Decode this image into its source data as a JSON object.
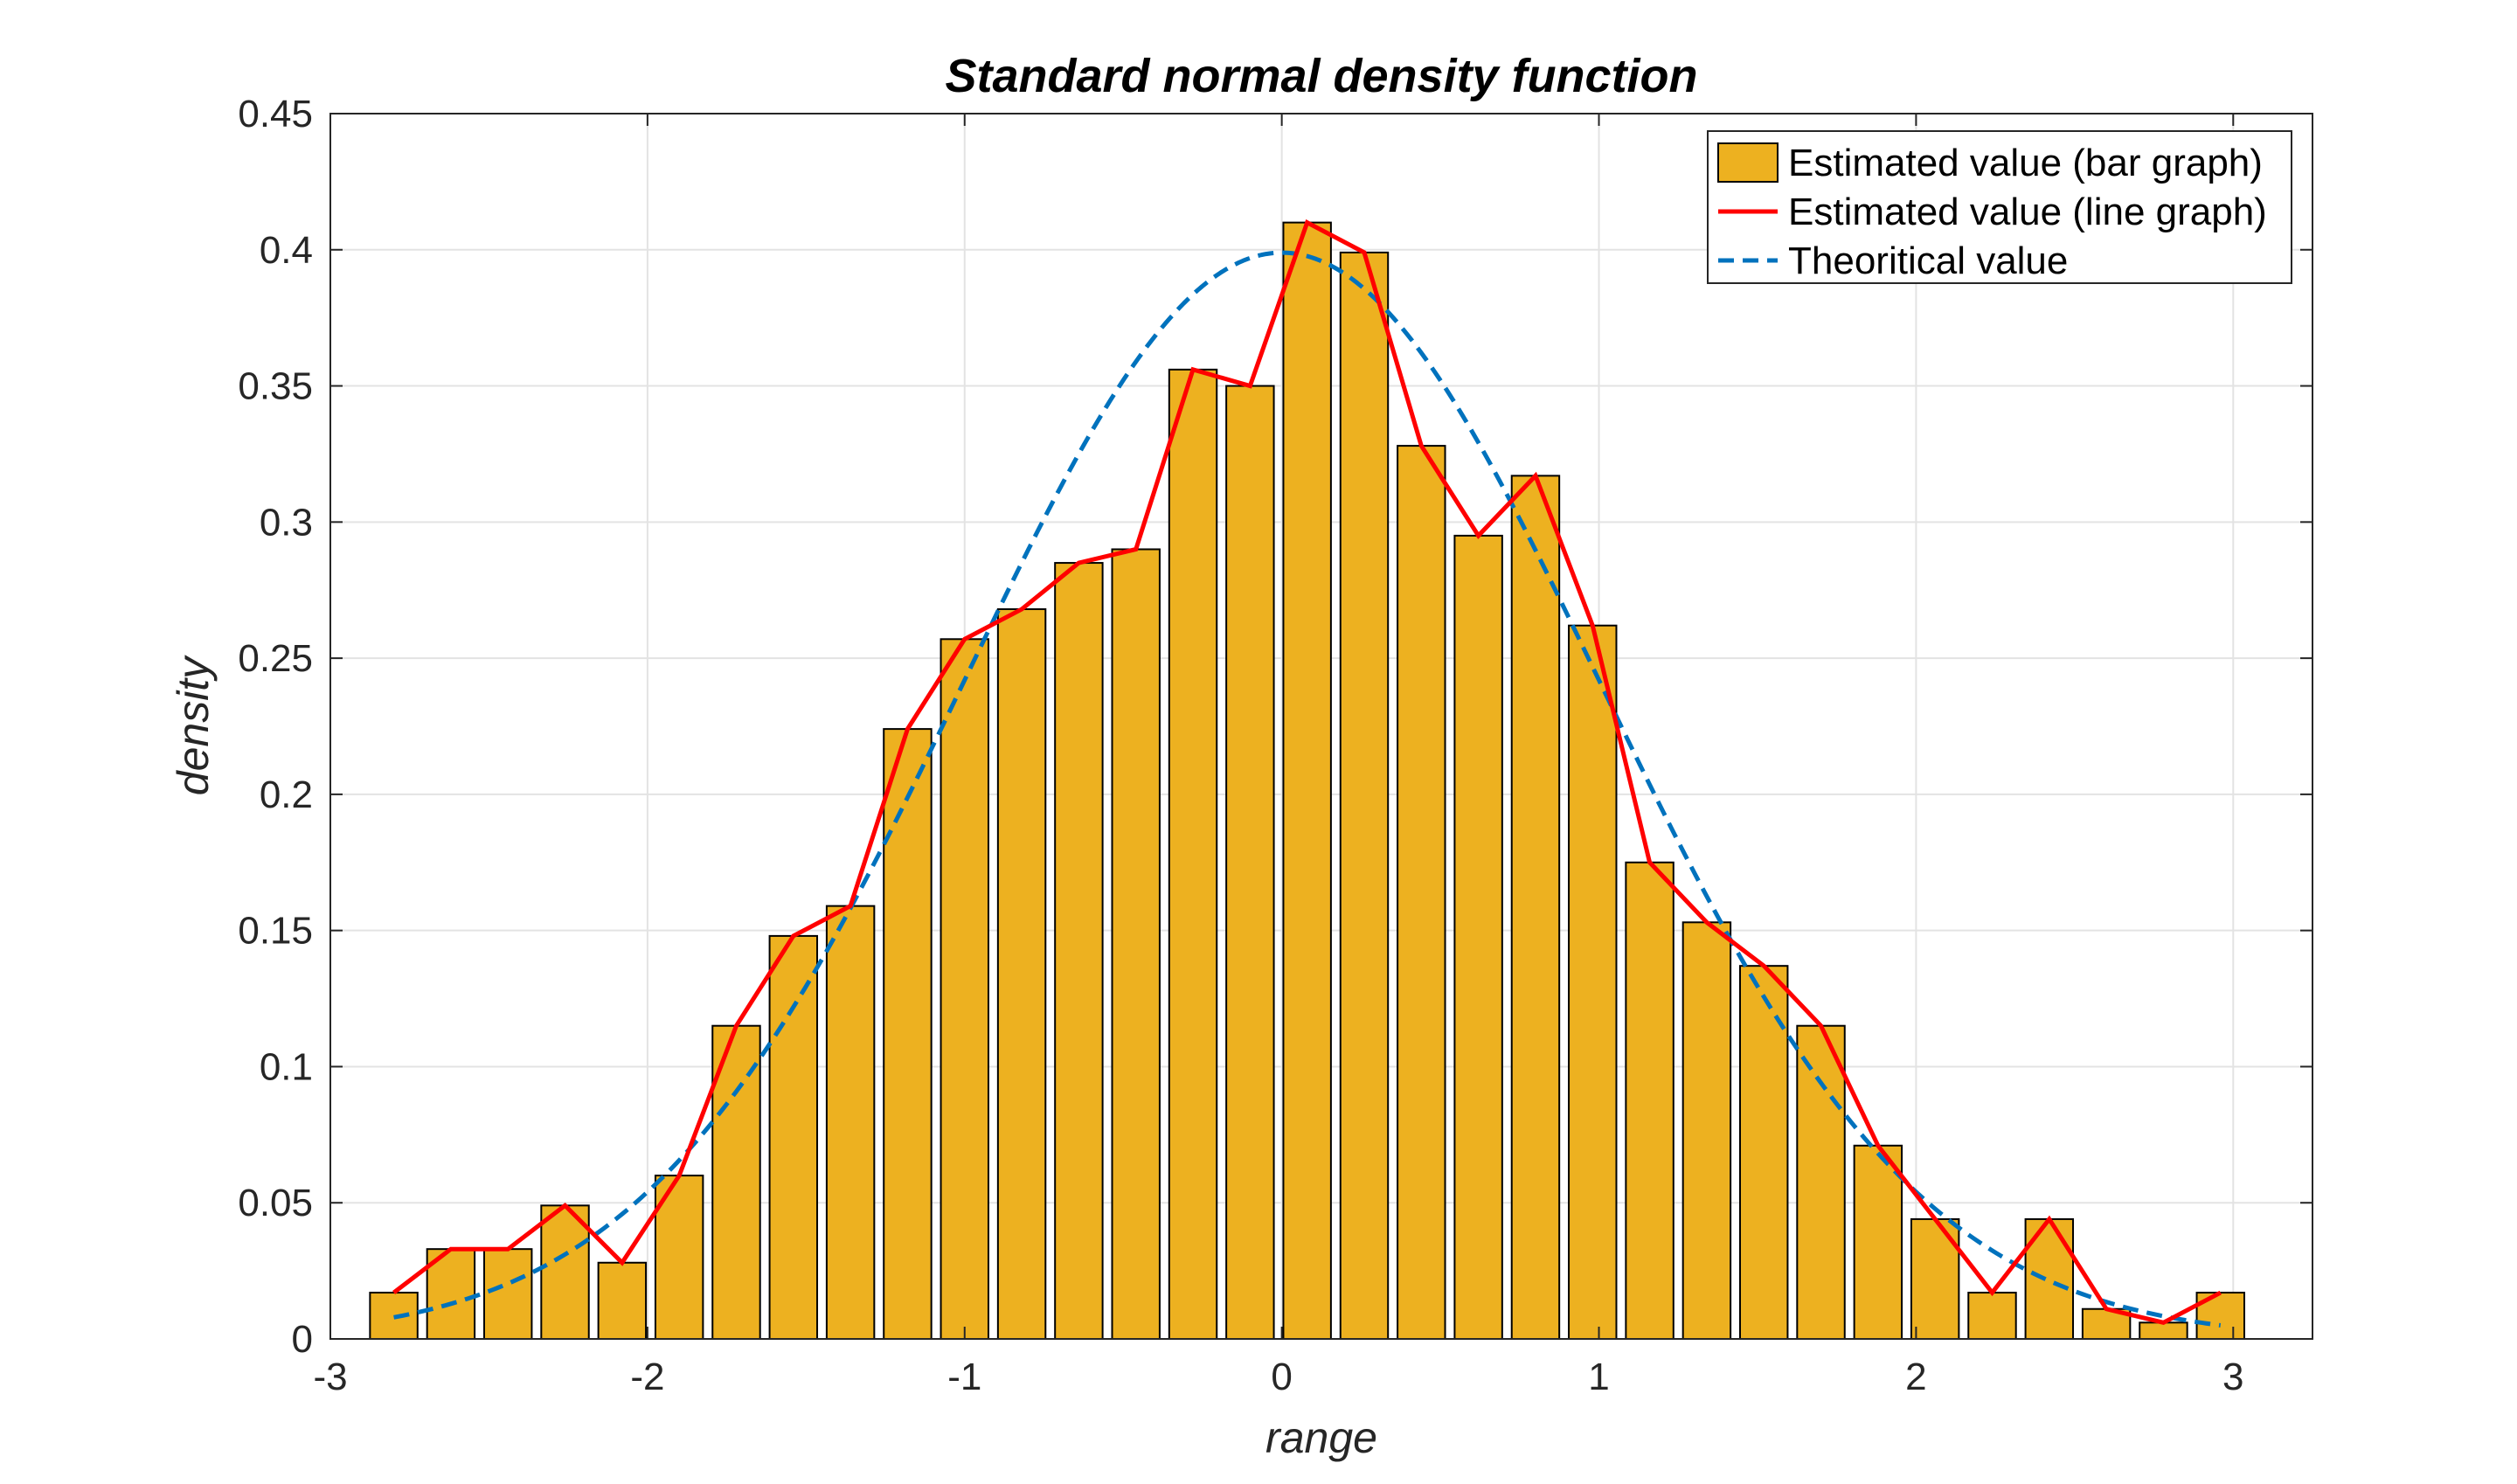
{
  "chart_data": {
    "type": "bar",
    "title": "Standard normal density function",
    "xlabel": "range",
    "ylabel": "density",
    "xlim": [
      -3,
      3.25
    ],
    "ylim": [
      0,
      0.45
    ],
    "xticks": [
      -3,
      -2,
      -1,
      0,
      1,
      2,
      3
    ],
    "xtick_labels": [
      "-3",
      "-2",
      "-1",
      "0",
      "1",
      "2",
      "3"
    ],
    "yticks": [
      0,
      0.05,
      0.1,
      0.15,
      0.2,
      0.25,
      0.3,
      0.35,
      0.4,
      0.45
    ],
    "ytick_labels": [
      "0",
      "0.05",
      "0.1",
      "0.15",
      "0.2",
      "0.25",
      "0.3",
      "0.35",
      "0.4",
      "0.45"
    ],
    "grid": true,
    "legend_position": "top-right",
    "bar_width_data": 0.15,
    "x": [
      -2.8,
      -2.62,
      -2.44,
      -2.26,
      -2.08,
      -1.9,
      -1.72,
      -1.54,
      -1.36,
      -1.18,
      -1.0,
      -0.82,
      -0.64,
      -0.46,
      -0.28,
      -0.1,
      0.08,
      0.26,
      0.44,
      0.62,
      0.8,
      0.98,
      1.16,
      1.34,
      1.52,
      1.7,
      1.88,
      2.06,
      2.24,
      2.42,
      2.6,
      2.78,
      2.96
    ],
    "series": [
      {
        "name": "Estimated value (bar graph)",
        "kind": "bar",
        "color": "#EDB120",
        "edge_color": "#000000",
        "values": [
          0.017,
          0.033,
          0.033,
          0.049,
          0.028,
          0.06,
          0.115,
          0.148,
          0.159,
          0.224,
          0.257,
          0.268,
          0.285,
          0.29,
          0.356,
          0.35,
          0.41,
          0.399,
          0.328,
          0.295,
          0.317,
          0.262,
          0.175,
          0.153,
          0.137,
          0.115,
          0.071,
          0.044,
          0.017,
          0.044,
          0.011,
          0.006,
          0.017
        ]
      },
      {
        "name": "Estimated value (line graph)",
        "kind": "line",
        "color": "#FF0000",
        "values": [
          0.017,
          0.033,
          0.033,
          0.049,
          0.028,
          0.06,
          0.115,
          0.148,
          0.159,
          0.224,
          0.257,
          0.268,
          0.285,
          0.29,
          0.356,
          0.35,
          0.41,
          0.399,
          0.328,
          0.295,
          0.317,
          0.262,
          0.175,
          0.153,
          0.137,
          0.115,
          0.071,
          0.044,
          0.017,
          0.044,
          0.011,
          0.006,
          0.017
        ]
      },
      {
        "name": "Theoritical value",
        "kind": "dashed-line",
        "color": "#0072BD",
        "function": "standard normal pdf",
        "x_range": [
          -2.8,
          2.96
        ]
      }
    ]
  }
}
